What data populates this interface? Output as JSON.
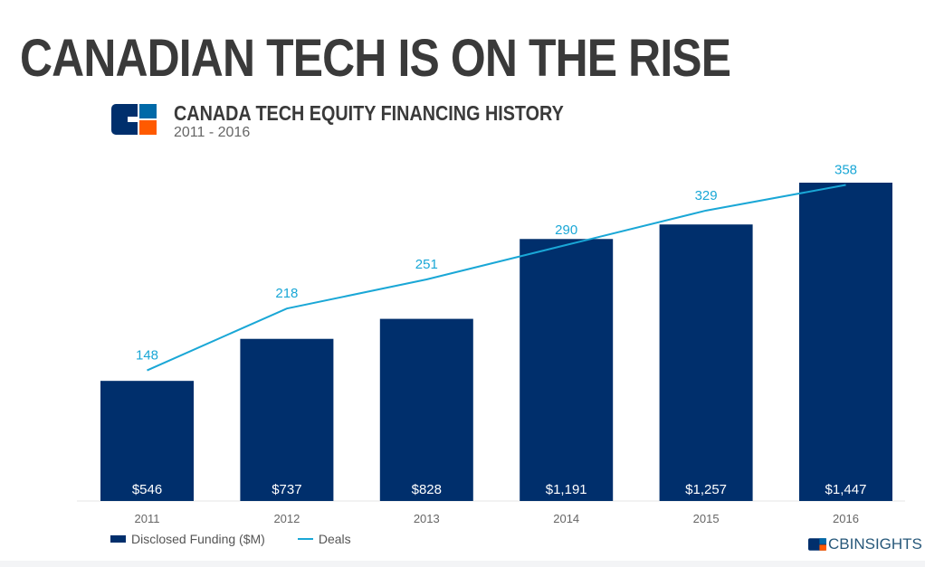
{
  "header": {
    "title": "CANADIAN TECH IS ON THE RISE"
  },
  "brand": {
    "logo_text": "CBINSIGHTS",
    "colors": {
      "navy": "#002f6c",
      "blue": "#0069a8",
      "orange": "#ff5a00"
    }
  },
  "chart_data": {
    "type": "bar",
    "title": "CANADA TECH EQUITY FINANCING HISTORY",
    "subtitle": "2011 - 2016",
    "categories": [
      "2011",
      "2012",
      "2013",
      "2014",
      "2015",
      "2016"
    ],
    "series": [
      {
        "name": "Disclosed Funding ($M)",
        "type": "bar",
        "color": "#002f6c",
        "values": [
          546,
          737,
          828,
          1191,
          1257,
          1447
        ],
        "labels": [
          "$546",
          "$737",
          "$828",
          "$1,191",
          "$1,257",
          "$1,447"
        ]
      },
      {
        "name": "Deals",
        "type": "line",
        "color": "#1aa7d6",
        "values": [
          148,
          218,
          251,
          290,
          329,
          358
        ],
        "labels": [
          "148",
          "218",
          "251",
          "290",
          "329",
          "358"
        ]
      }
    ],
    "legend": "bottom-left",
    "grid": false
  }
}
